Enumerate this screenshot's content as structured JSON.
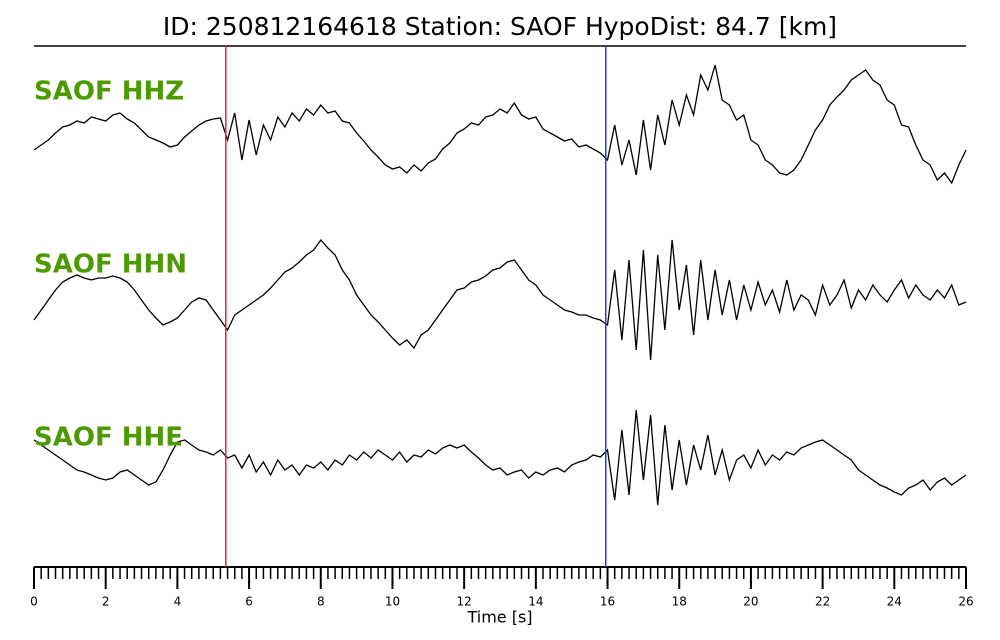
{
  "chart_data": {
    "type": "seismogram",
    "title": "ID: 250812164618   Station: SAOF   HypoDist:    84.7 [km]",
    "xlabel": "Time [s]",
    "xlim": [
      0,
      26
    ],
    "xticks": [
      0,
      2,
      4,
      6,
      8,
      10,
      12,
      14,
      16,
      18,
      20,
      22,
      24,
      26
    ],
    "x": [
      0,
      0.2,
      0.4,
      0.6,
      0.8,
      1,
      1.2,
      1.4,
      1.6,
      1.8,
      2,
      2.2,
      2.4,
      2.6,
      2.8,
      3,
      3.2,
      3.4,
      3.6,
      3.8,
      4,
      4.2,
      4.4,
      4.6,
      4.8,
      5,
      5.2,
      5.4,
      5.6,
      5.8,
      6,
      6.2,
      6.4,
      6.6,
      6.8,
      7,
      7.2,
      7.4,
      7.6,
      7.8,
      8,
      8.2,
      8.4,
      8.6,
      8.8,
      9,
      9.2,
      9.4,
      9.6,
      9.8,
      10,
      10.2,
      10.4,
      10.6,
      10.8,
      11,
      11.2,
      11.4,
      11.6,
      11.8,
      12,
      12.2,
      12.4,
      12.6,
      12.8,
      13,
      13.2,
      13.4,
      13.6,
      13.8,
      14,
      14.2,
      14.4,
      14.6,
      14.8,
      15,
      15.2,
      15.4,
      15.6,
      15.8,
      16,
      16.2,
      16.4,
      16.6,
      16.8,
      17,
      17.2,
      17.4,
      17.6,
      17.8,
      18,
      18.2,
      18.4,
      18.6,
      18.8,
      19,
      19.2,
      19.4,
      19.6,
      19.8,
      20,
      20.2,
      20.4,
      20.6,
      20.8,
      21,
      21.2,
      21.4,
      21.6,
      21.8,
      22,
      22.2,
      22.4,
      22.6,
      22.8,
      23,
      23.2,
      23.4,
      23.6,
      23.8,
      24,
      24.2,
      24.4,
      24.6,
      24.8,
      25,
      25.2,
      25.4,
      25.6,
      25.8,
      26
    ],
    "picks": [
      {
        "time": 5.35,
        "color": "#e8262a"
      },
      {
        "time": 15.95,
        "color": "#2b3bd6"
      }
    ],
    "label_color": "#4c9a00",
    "series": [
      {
        "name": "SAOF HHZ",
        "color": "#000000",
        "values": [
          -15,
          -10,
          -5,
          2,
          8,
          10,
          14,
          12,
          18,
          16,
          14,
          20,
          22,
          16,
          12,
          5,
          -2,
          -5,
          -8,
          -12,
          -10,
          -2,
          4,
          10,
          14,
          16,
          17,
          -5,
          22,
          -25,
          15,
          -20,
          10,
          -5,
          18,
          8,
          22,
          14,
          26,
          20,
          30,
          22,
          24,
          14,
          12,
          2,
          -6,
          -15,
          -22,
          -30,
          -34,
          -32,
          -38,
          -30,
          -36,
          -28,
          -24,
          -14,
          -8,
          2,
          6,
          12,
          10,
          18,
          20,
          26,
          22,
          32,
          20,
          16,
          18,
          6,
          2,
          -2,
          -6,
          -4,
          -12,
          -10,
          -14,
          -18,
          -25,
          10,
          -30,
          -5,
          -40,
          15,
          -35,
          20,
          -10,
          35,
          10,
          40,
          20,
          60,
          45,
          70,
          35,
          30,
          15,
          20,
          -5,
          -10,
          -25,
          -30,
          -38,
          -40,
          -35,
          -25,
          -10,
          5,
          15,
          30,
          38,
          45,
          55,
          60,
          65,
          55,
          50,
          35,
          30,
          10,
          8,
          -10,
          -25,
          -30,
          -45,
          -38,
          -48,
          -30,
          -15
        ]
      },
      {
        "name": "SAOF HHN",
        "color": "#000000",
        "values": [
          -30,
          -20,
          -10,
          0,
          8,
          12,
          15,
          12,
          10,
          12,
          12,
          14,
          12,
          8,
          0,
          -10,
          -20,
          -28,
          -35,
          -32,
          -28,
          -20,
          -12,
          -8,
          -10,
          -20,
          -30,
          -40,
          -25,
          -20,
          -15,
          -10,
          -5,
          2,
          10,
          18,
          22,
          28,
          35,
          40,
          50,
          42,
          35,
          20,
          10,
          -5,
          -15,
          -25,
          -32,
          -40,
          -48,
          -55,
          -50,
          -58,
          -45,
          -40,
          -30,
          -20,
          -10,
          0,
          2,
          8,
          10,
          14,
          20,
          22,
          28,
          30,
          20,
          10,
          5,
          -5,
          -10,
          -15,
          -20,
          -22,
          -25,
          -25,
          -28,
          -30,
          -35,
          20,
          -50,
          30,
          -60,
          40,
          -70,
          35,
          -40,
          50,
          -20,
          25,
          -45,
          30,
          -30,
          20,
          -25,
          10,
          -30,
          5,
          -20,
          8,
          -15,
          0,
          -22,
          10,
          -20,
          -5,
          -10,
          -25,
          5,
          -15,
          -5,
          10,
          -18,
          0,
          -10,
          5,
          -5,
          -12,
          0,
          10,
          -8,
          5,
          -5,
          -10,
          0,
          -8,
          5,
          -15,
          -12
        ]
      },
      {
        "name": "SAOF HHE",
        "color": "#000000",
        "values": [
          20,
          15,
          10,
          5,
          0,
          -5,
          -10,
          -12,
          -15,
          -18,
          -20,
          -18,
          -12,
          -10,
          -15,
          -20,
          -25,
          -22,
          -10,
          5,
          18,
          20,
          15,
          10,
          8,
          5,
          10,
          2,
          5,
          -8,
          5,
          -12,
          -2,
          -15,
          0,
          -10,
          -5,
          -15,
          -5,
          -8,
          -2,
          -10,
          0,
          -5,
          5,
          0,
          8,
          2,
          10,
          5,
          0,
          8,
          -2,
          5,
          3,
          10,
          6,
          12,
          15,
          12,
          15,
          8,
          2,
          -5,
          -10,
          -8,
          -15,
          -12,
          -10,
          -18,
          -12,
          -15,
          -10,
          -8,
          -12,
          -5,
          -2,
          0,
          5,
          3,
          10,
          -40,
          30,
          -35,
          50,
          -20,
          45,
          -45,
          35,
          -30,
          20,
          -25,
          15,
          -10,
          25,
          -15,
          10,
          -20,
          0,
          5,
          -8,
          10,
          -5,
          5,
          0,
          8,
          5,
          12,
          15,
          18,
          20,
          15,
          10,
          5,
          0,
          -10,
          -15,
          -20,
          -25,
          -28,
          -32,
          -35,
          -28,
          -25,
          -20,
          -30,
          -22,
          -18,
          -25,
          -20,
          -15
        ]
      }
    ]
  }
}
